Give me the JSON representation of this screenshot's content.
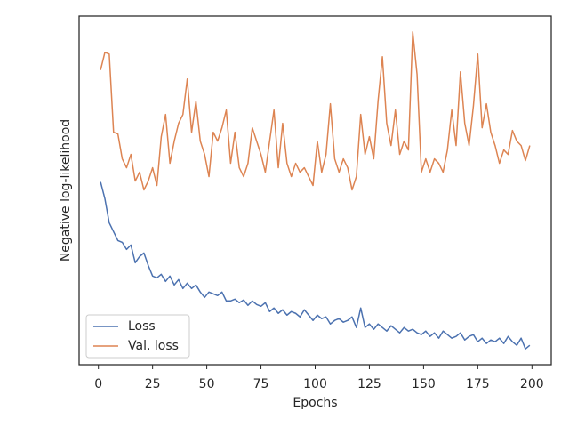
{
  "chart_data": {
    "type": "line",
    "xlabel": "Epochs",
    "ylabel": "Negative log-likelihood",
    "x": [
      1,
      3,
      5,
      7,
      9,
      11,
      13,
      15,
      17,
      19,
      21,
      23,
      25,
      27,
      29,
      31,
      33,
      35,
      37,
      39,
      41,
      43,
      45,
      47,
      49,
      51,
      53,
      55,
      57,
      59,
      61,
      63,
      65,
      67,
      69,
      71,
      73,
      75,
      77,
      79,
      81,
      83,
      85,
      87,
      89,
      91,
      93,
      95,
      97,
      99,
      101,
      103,
      105,
      107,
      109,
      111,
      113,
      115,
      117,
      119,
      121,
      123,
      125,
      127,
      129,
      131,
      133,
      135,
      137,
      139,
      141,
      143,
      145,
      147,
      149,
      151,
      153,
      155,
      157,
      159,
      161,
      163,
      165,
      167,
      169,
      171,
      173,
      175,
      177,
      179,
      181,
      183,
      185,
      187,
      189,
      191,
      193,
      195,
      197,
      199
    ],
    "series": [
      {
        "name": "Loss",
        "color": "#4c72b0",
        "values": [
          204,
          185,
          158,
          148,
          138,
          136,
          128,
          133,
          113,
          120,
          124,
          110,
          98,
          96,
          100,
          92,
          98,
          88,
          94,
          84,
          90,
          84,
          88,
          80,
          74,
          80,
          78,
          76,
          80,
          70,
          70,
          72,
          68,
          71,
          65,
          70,
          66,
          64,
          68,
          58,
          62,
          56,
          60,
          54,
          58,
          56,
          52,
          60,
          54,
          48,
          54,
          50,
          52,
          44,
          48,
          50,
          46,
          48,
          52,
          40,
          62,
          40,
          44,
          38,
          44,
          40,
          36,
          42,
          38,
          34,
          40,
          36,
          38,
          34,
          32,
          36,
          30,
          34,
          28,
          36,
          32,
          28,
          30,
          34,
          26,
          30,
          32,
          24,
          28,
          22,
          26,
          24,
          28,
          22,
          30,
          24,
          20,
          28,
          16,
          20
        ]
      },
      {
        "name": "Val. loss",
        "color": "#dd8452",
        "values": [
          330,
          350,
          348,
          260,
          258,
          230,
          220,
          235,
          205,
          215,
          195,
          205,
          220,
          200,
          255,
          280,
          225,
          250,
          270,
          280,
          320,
          260,
          295,
          250,
          235,
          210,
          260,
          250,
          265,
          285,
          225,
          260,
          220,
          210,
          225,
          265,
          250,
          235,
          215,
          250,
          285,
          220,
          270,
          225,
          210,
          225,
          215,
          220,
          210,
          200,
          250,
          215,
          235,
          292,
          230,
          215,
          230,
          220,
          195,
          210,
          280,
          235,
          255,
          230,
          295,
          345,
          270,
          245,
          285,
          235,
          250,
          240,
          373,
          325,
          215,
          230,
          215,
          230,
          225,
          215,
          240,
          285,
          245,
          328,
          270,
          245,
          290,
          348,
          265,
          292,
          260,
          245,
          225,
          240,
          235,
          262,
          250,
          245,
          228,
          245
        ]
      }
    ],
    "xlim": [
      -8.9,
      208.9
    ],
    "xticks": [
      0,
      25,
      50,
      75,
      100,
      125,
      150,
      175,
      200
    ],
    "legend": "lower left",
    "grid": false
  }
}
